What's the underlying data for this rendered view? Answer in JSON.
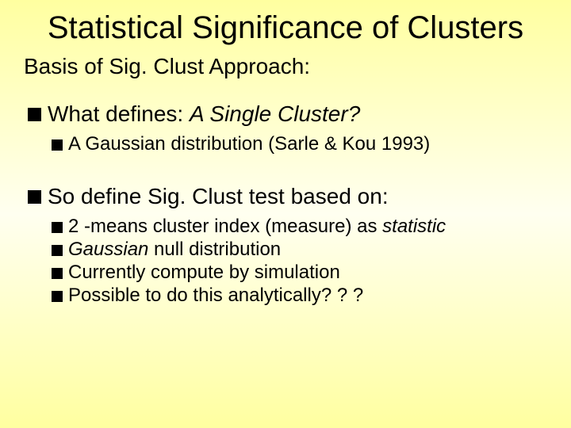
{
  "title": "Statistical Significance of Clusters",
  "subtitle": "Basis of Sig. Clust Approach:",
  "bullets": {
    "b1_prefix": "What defines:   ",
    "b1_italic": "A Single Cluster?",
    "b1_sub1": "A Gaussian distribution  (Sarle & Kou 1993)",
    "b2": "So define Sig. Clust test based on:",
    "b2_sub1_prefix": "2 -means cluster index (measure) as ",
    "b2_sub1_italic": "statistic",
    "b2_sub2_italic": "Gaussian",
    "b2_sub2_suffix": " null distribution",
    "b2_sub3": "Currently compute by simulation",
    "b2_sub4": "Possible to do this analytically? ? ?"
  },
  "colors": {
    "background_top": "#ffffa0",
    "background_mid": "#fffff0",
    "text": "#000000",
    "bullet_marker": "#000000"
  },
  "typography": {
    "title_fontsize": 40,
    "subtitle_fontsize": 28,
    "bullet1_fontsize": 28,
    "bullet2_fontsize": 24,
    "font_family": "Arial"
  }
}
